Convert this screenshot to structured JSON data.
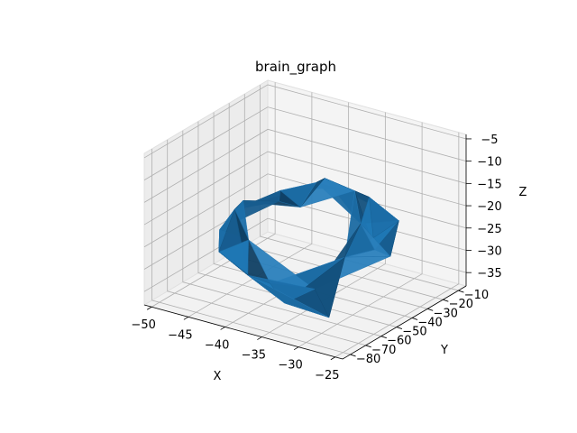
{
  "chart_data": {
    "type": "surface3d",
    "title": "brain_graph",
    "xlabel": "X",
    "ylabel": "Y",
    "zlabel": "Z",
    "x_ticks": [
      -50,
      -45,
      -40,
      -35,
      -30,
      -25
    ],
    "y_ticks": [
      -80,
      -70,
      -60,
      -50,
      -40,
      -30,
      -20,
      -10
    ],
    "z_ticks": [
      -35,
      -30,
      -25,
      -20,
      -15,
      -10,
      -5
    ],
    "x_tick_labels": [
      "−50",
      "−45",
      "−40",
      "−35",
      "−30",
      "−25"
    ],
    "y_tick_labels": [
      "−80",
      "−70",
      "−60",
      "−50",
      "−40",
      "−30",
      "−20",
      "−10"
    ],
    "z_tick_labels": [
      "−35",
      "−30",
      "−25",
      "−20",
      "−15",
      "−10",
      "−5"
    ],
    "xlim": [
      -51,
      -24
    ],
    "ylim": [
      -85,
      -5
    ],
    "zlim": [
      -38,
      -4
    ],
    "grid": true,
    "surface_color": "#1f77b4",
    "pane_color": "#f2f2f2",
    "grid_color": "#b0b0b0",
    "surface_points": [
      [
        -47,
        -40,
        -22
      ],
      [
        -45,
        -55,
        -20
      ],
      [
        -43,
        -35,
        -19
      ],
      [
        -40,
        -50,
        -17
      ],
      [
        -38,
        -30,
        -15
      ],
      [
        -36,
        -45,
        -12
      ],
      [
        -35,
        -60,
        -14
      ],
      [
        -33,
        -25,
        -18
      ],
      [
        -31,
        -40,
        -20
      ],
      [
        -30,
        -55,
        -24
      ],
      [
        -28,
        -35,
        -27
      ],
      [
        -27,
        -50,
        -22
      ],
      [
        -46,
        -60,
        -24
      ],
      [
        -44,
        -70,
        -26
      ],
      [
        -41,
        -65,
        -23
      ],
      [
        -39,
        -75,
        -28
      ],
      [
        -37,
        -70,
        -30
      ],
      [
        -34,
        -75,
        -32
      ],
      [
        -32,
        -65,
        -30
      ],
      [
        -29,
        -70,
        -34
      ],
      [
        -48,
        -30,
        -25
      ],
      [
        -42,
        -20,
        -21
      ],
      [
        -36,
        -20,
        -19
      ],
      [
        -30,
        -20,
        -23
      ]
    ]
  }
}
